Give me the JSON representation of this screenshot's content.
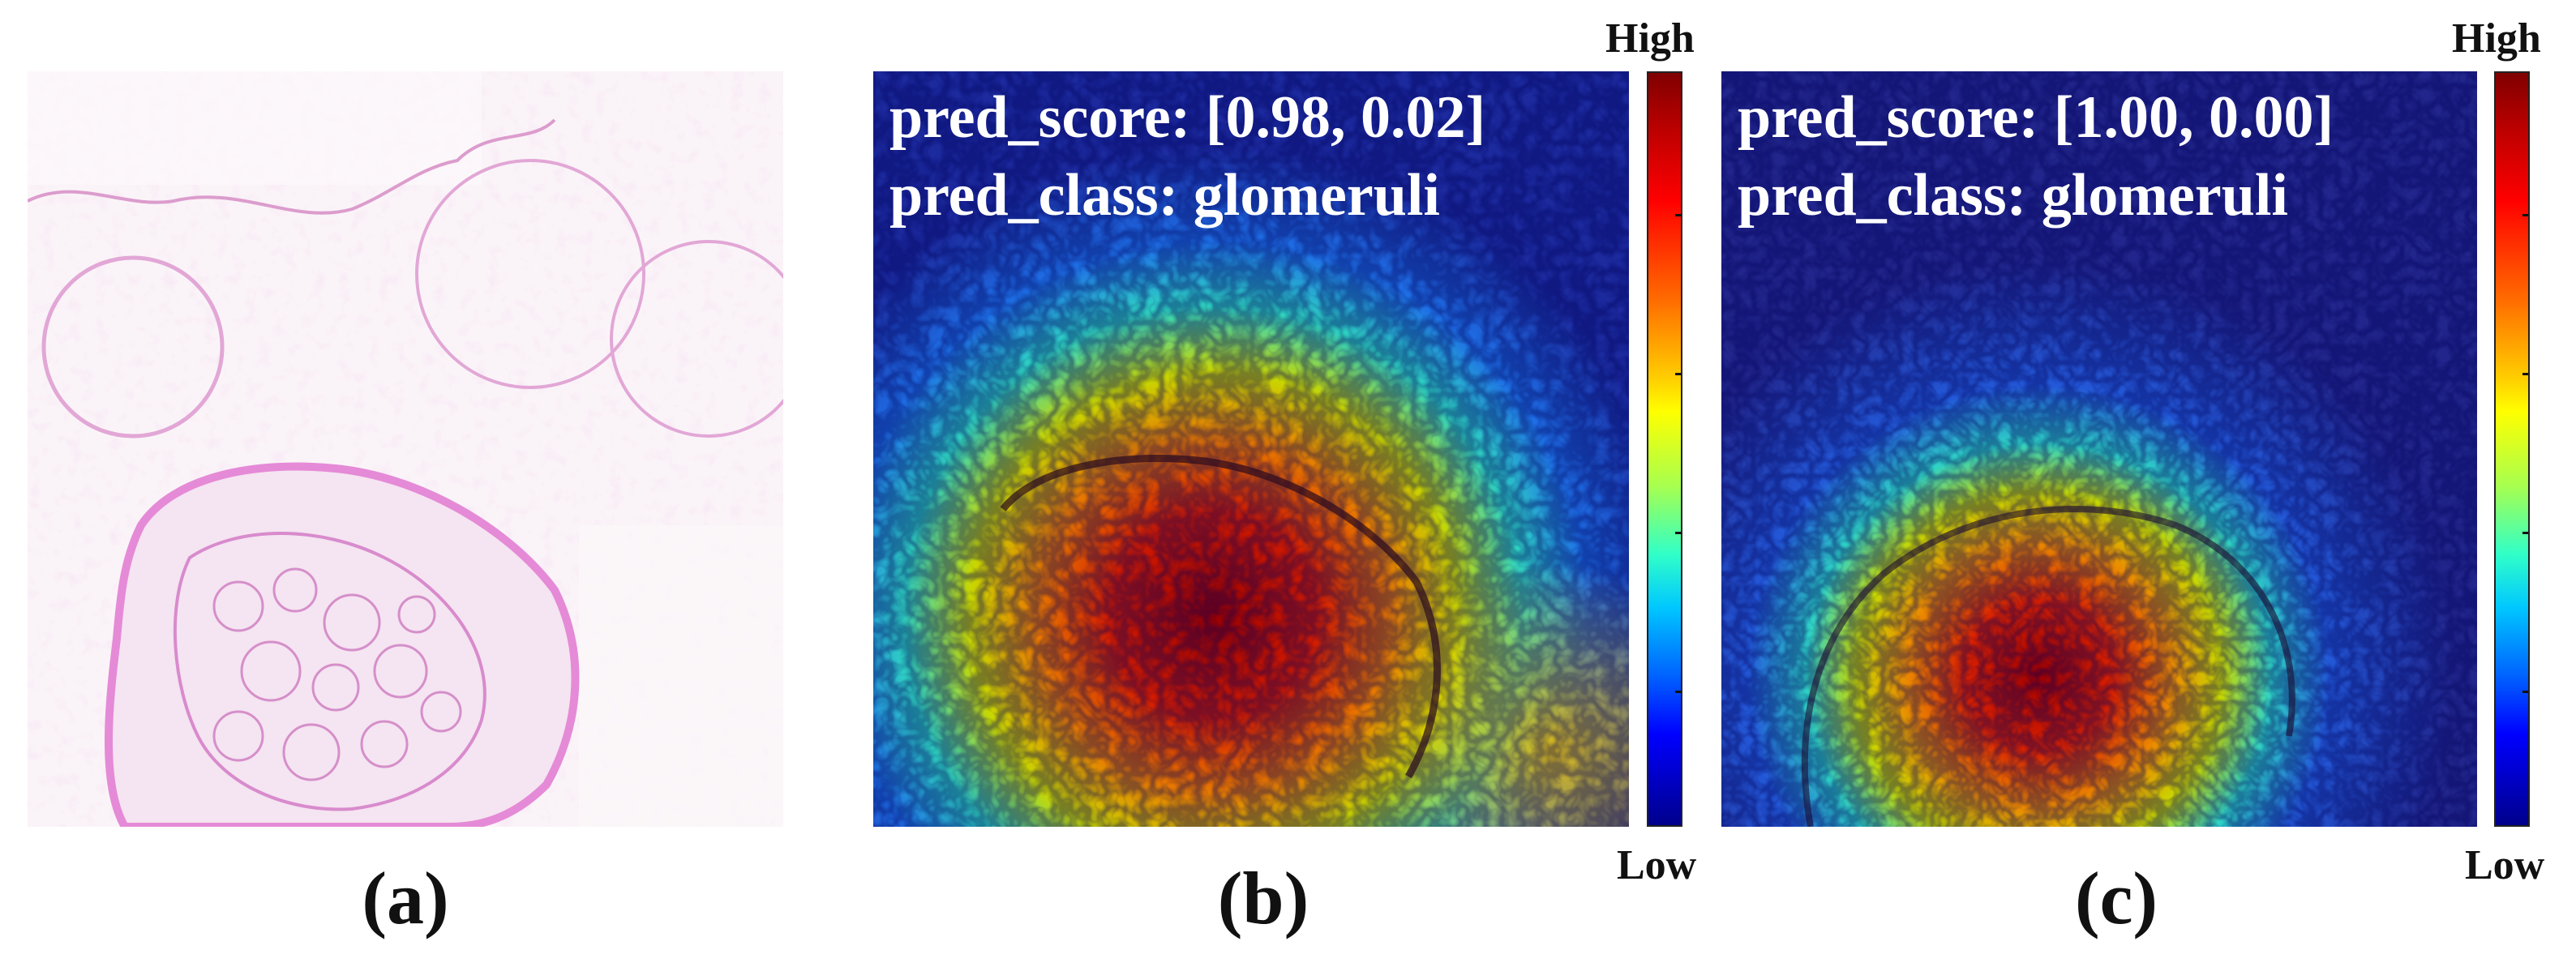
{
  "panels": [
    {
      "id": "a",
      "caption": "(a)"
    },
    {
      "id": "b",
      "caption": "(b)",
      "pred_score": "pred_score: [0.98, 0.02]",
      "pred_class": "pred_class: glomeruli",
      "colorbar": {
        "high": "High",
        "low": "Low"
      }
    },
    {
      "id": "c",
      "caption": "(c)",
      "pred_score": "pred_score: [1.00, 0.00]",
      "pred_class": "pred_class: glomeruli",
      "colorbar": {
        "high": "High",
        "low": "Low"
      }
    }
  ],
  "colors": {
    "stain": "#e79ad8",
    "background": "#f8f1f6",
    "overlay_text": "#ffffff"
  }
}
